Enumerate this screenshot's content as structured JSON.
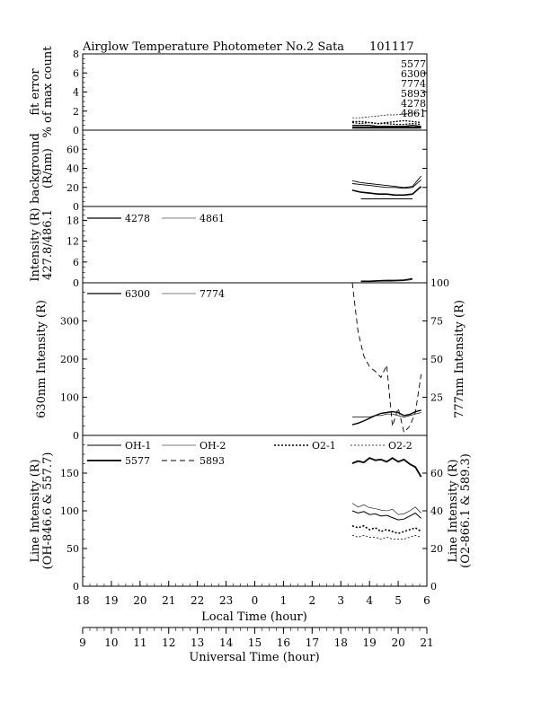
{
  "header": {
    "title": "Airglow Temperature Photometer No.2  Sata",
    "date": "101117"
  },
  "x_axes": {
    "lt_label": "Local Time (hour)",
    "ut_label": "Universal Time (hour)",
    "lt_ticks": [
      "18",
      "19",
      "20",
      "21",
      "22",
      "23",
      "0",
      "1",
      "2",
      "3",
      "4",
      "5",
      "6"
    ],
    "ut_ticks": [
      "9",
      "10",
      "11",
      "12",
      "13",
      "14",
      "15",
      "16",
      "17",
      "18",
      "19",
      "20",
      "21"
    ]
  },
  "chart_data": [
    {
      "type": "line",
      "title": "",
      "ylabel": "fit error % of max count",
      "ylabel_lines": [
        "fit error",
        "% of max count"
      ],
      "xlim": [
        0,
        12
      ],
      "ylim": [
        0,
        8
      ],
      "yticks": [
        "0",
        "2",
        "4",
        "6",
        "8"
      ],
      "x": [
        9.4,
        9.7,
        10.0,
        10.3,
        10.6,
        10.9,
        11.2,
        11.5,
        11.8
      ],
      "annotations": [
        "5577",
        "6300",
        "7774",
        "5893",
        "4278",
        "4861"
      ],
      "series": [
        {
          "values": [
            1.3,
            1.3,
            1.4,
            1.5,
            1.6,
            1.6,
            1.7,
            1.8,
            1.7
          ]
        },
        {
          "values": [
            0.9,
            0.9,
            0.8,
            0.7,
            0.8,
            0.9,
            1.0,
            0.9,
            0.8
          ]
        },
        {
          "values": [
            0.8,
            0.7,
            0.8,
            0.7,
            0.7,
            0.6,
            0.6,
            0.7,
            0.6
          ]
        },
        {
          "values": [
            0.5,
            0.5,
            0.5,
            0.4,
            0.4,
            0.4,
            0.4,
            0.5,
            0.4
          ]
        },
        {
          "values": [
            0.3,
            0.3,
            0.3,
            0.3,
            0.3,
            0.3,
            0.3,
            0.3,
            0.3
          ]
        },
        {
          "values": [
            0.2,
            0.2,
            0.2,
            0.2,
            0.2,
            0.2,
            0.2,
            0.2,
            0.2
          ]
        }
      ]
    },
    {
      "type": "line",
      "title": "",
      "ylabel": "background (R/nm)",
      "ylabel_lines": [
        "background",
        "(R/nm)"
      ],
      "xlim": [
        0,
        12
      ],
      "ylim": [
        0,
        80
      ],
      "yticks": [
        "0",
        "20",
        "40",
        "60"
      ],
      "x": [
        9.4,
        9.7,
        10.0,
        10.3,
        10.6,
        10.9,
        11.2,
        11.5,
        11.8
      ],
      "series": [
        {
          "values": [
            27,
            25,
            24,
            23,
            22,
            21,
            20,
            21,
            32
          ]
        },
        {
          "values": [
            24,
            23,
            22,
            21,
            20,
            20,
            19,
            20,
            28
          ]
        },
        {
          "values": [
            17,
            15,
            14,
            13,
            13,
            12,
            12,
            13,
            21
          ]
        },
        {
          "values": [
            null,
            8,
            8,
            8,
            8,
            8,
            8,
            8,
            null
          ]
        }
      ]
    },
    {
      "type": "line",
      "title": "",
      "ylabel": "Intensity (R) 427.8/486.1",
      "ylabel_lines": [
        "Intensity (R)",
        "427.8/486.1"
      ],
      "xlim": [
        0,
        12
      ],
      "ylim": [
        0,
        22
      ],
      "yticks": [
        "0",
        "6",
        "12",
        "18"
      ],
      "x": [
        9.7,
        10.0,
        10.3,
        10.6,
        10.9,
        11.2,
        11.5
      ],
      "series": [
        {
          "name": "4278",
          "values": [
            0.5,
            0.5,
            0.6,
            0.7,
            0.7,
            0.8,
            1.2
          ]
        },
        {
          "name": "4861",
          "values": [
            0.3,
            0.3,
            0.4,
            0.4,
            0.5,
            0.6,
            0.9
          ]
        }
      ]
    },
    {
      "type": "line",
      "title": "",
      "ylabel": "630nm Intensity (R)",
      "ylabel_right": "777nm Intensity (R)",
      "xlim": [
        0,
        12
      ],
      "ylim": [
        0,
        400
      ],
      "ylim_right": [
        0,
        100
      ],
      "yticks": [
        "0",
        "100",
        "200",
        "300"
      ],
      "yticks_right": [
        "25",
        "50",
        "75",
        "100"
      ],
      "x": [
        9.4,
        9.6,
        9.8,
        10.0,
        10.2,
        10.4,
        10.6,
        10.8,
        11.0,
        11.2,
        11.4,
        11.6,
        11.8
      ],
      "series": [
        {
          "name": "6300",
          "axis": "left",
          "values": [
            28,
            32,
            38,
            45,
            52,
            58,
            60,
            62,
            60,
            52,
            55,
            62,
            66
          ]
        },
        {
          "name": "7774",
          "axis": "right",
          "values": [
            12,
            12,
            12,
            12,
            13,
            13,
            14,
            14,
            13,
            12,
            13,
            14,
            15
          ]
        },
        {
          "name": "",
          "axis": "right",
          "values": [
            100,
            68,
            52,
            45,
            42,
            38,
            46,
            6,
            18,
            2,
            6,
            15,
            40
          ]
        }
      ]
    },
    {
      "type": "line",
      "title": "",
      "ylabel": "Line Intensity (R) (OH-846.6 & 557.7)",
      "ylabel_lines": [
        "Line Intensity (R)",
        "(OH-846.6 & 557.7)"
      ],
      "ylabel_right": "Line Intensity (R) (O2-866.1 & 589.3)",
      "ylabel_right_lines": [
        "Line Intensity (R)",
        "(O2-866.1 & 589.3)"
      ],
      "xlim": [
        0,
        12
      ],
      "ylim": [
        0,
        200
      ],
      "ylim_right": [
        0,
        80
      ],
      "yticks": [
        "0",
        "50",
        "100",
        "150"
      ],
      "yticks_right": [
        "0",
        "20",
        "40",
        "60"
      ],
      "x": [
        9.4,
        9.6,
        9.8,
        10.0,
        10.2,
        10.4,
        10.6,
        10.8,
        11.0,
        11.2,
        11.4,
        11.6,
        11.8
      ],
      "series": [
        {
          "name": "OH-1",
          "axis": "left",
          "values": [
            100,
            97,
            99,
            95,
            96,
            93,
            94,
            91,
            88,
            89,
            93,
            97,
            90
          ]
        },
        {
          "name": "OH-2",
          "axis": "left",
          "values": [
            110,
            105,
            108,
            104,
            103,
            101,
            100,
            102,
            95,
            96,
            100,
            105,
            97
          ]
        },
        {
          "name": "O2-1",
          "axis": "right",
          "values": [
            32,
            31,
            32,
            30,
            31,
            29,
            30,
            29,
            28,
            29,
            30,
            31,
            29
          ]
        },
        {
          "name": "O2-2",
          "axis": "right",
          "values": [
            27,
            26,
            27,
            26,
            26,
            25,
            26,
            25,
            25,
            25,
            26,
            27,
            26
          ]
        },
        {
          "name": "5577",
          "axis": "left",
          "values": [
            163,
            166,
            164,
            170,
            167,
            168,
            165,
            170,
            165,
            168,
            162,
            158,
            145
          ]
        },
        {
          "name": "5893",
          "axis": "right",
          "values": [
            null,
            null,
            null,
            null,
            null,
            null,
            null,
            null,
            null,
            null,
            null,
            null,
            null
          ]
        }
      ]
    }
  ]
}
